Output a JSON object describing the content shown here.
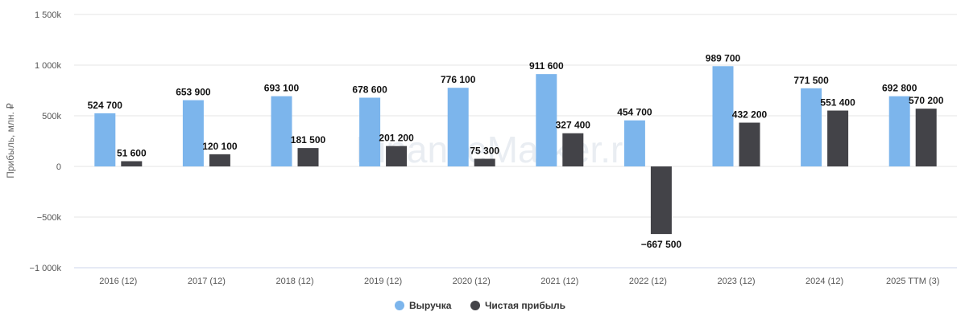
{
  "watermark": "FinanceMarker.ru",
  "chart_data": {
    "type": "bar",
    "title": "",
    "xlabel": "",
    "ylabel": "Прибыль, млн. ₽",
    "ylim": [
      -1000000,
      1500000
    ],
    "yticks": [
      {
        "value": 1500000,
        "label": "1 500k"
      },
      {
        "value": 1000000,
        "label": "1 000k"
      },
      {
        "value": 500000,
        "label": "500k"
      },
      {
        "value": 0,
        "label": "0"
      },
      {
        "value": -500000,
        "label": "−500k"
      },
      {
        "value": -1000000,
        "label": "−1 000k"
      }
    ],
    "grid": true,
    "legend_position": "bottom-center",
    "categories": [
      "2016 (12)",
      "2017 (12)",
      "2018 (12)",
      "2019 (12)",
      "2020 (12)",
      "2021 (12)",
      "2022 (12)",
      "2023 (12)",
      "2024 (12)",
      "2025 TTM (3)"
    ],
    "series": [
      {
        "name": "Выручка",
        "color": "#7cb5ec",
        "values": [
          524700,
          653900,
          693100,
          678600,
          776100,
          911600,
          454700,
          989700,
          771500,
          692800
        ],
        "labels": [
          "524 700",
          "653 900",
          "693 100",
          "678 600",
          "776 100",
          "911 600",
          "454 700",
          "989 700",
          "771 500",
          "692 800"
        ]
      },
      {
        "name": "Чистая прибыль",
        "color": "#434348",
        "values": [
          51600,
          120100,
          181500,
          201200,
          75300,
          327400,
          -667500,
          432200,
          551400,
          570200
        ],
        "labels": [
          "51 600",
          "120 100",
          "181 500",
          "201 200",
          "75 300",
          "327 400",
          "−667 500",
          "432 200",
          "551 400",
          "570 200"
        ]
      }
    ]
  }
}
